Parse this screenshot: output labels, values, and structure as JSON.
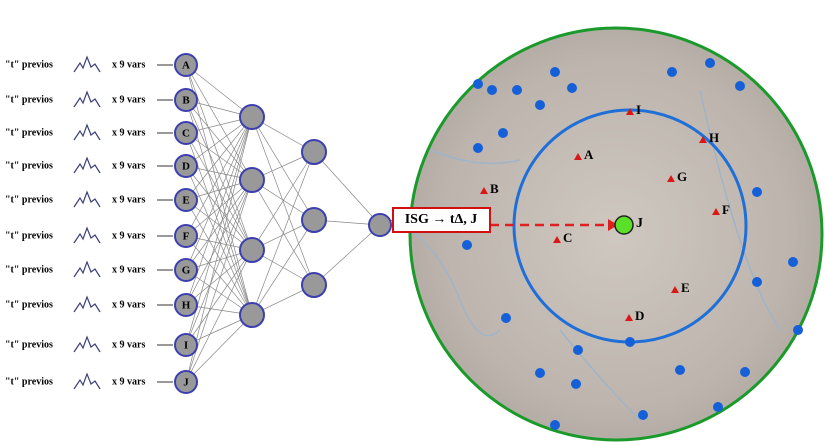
{
  "inputs": [
    {
      "prefix": "\"t\" previos",
      "multiplier": "x 9 vars",
      "node": "A"
    },
    {
      "prefix": "\"t\" previos",
      "multiplier": "x 9 vars",
      "node": "B"
    },
    {
      "prefix": "\"t\" previos",
      "multiplier": "x 9 vars",
      "node": "C"
    },
    {
      "prefix": "\"t\" previos",
      "multiplier": "x 9 vars",
      "node": "D"
    },
    {
      "prefix": "\"t\" previos",
      "multiplier": "x 9 vars",
      "node": "E"
    },
    {
      "prefix": "\"t\" previos",
      "multiplier": "x 9 vars",
      "node": "F"
    },
    {
      "prefix": "\"t\" previos",
      "multiplier": "x 9 vars",
      "node": "G"
    },
    {
      "prefix": "\"t\" previos",
      "multiplier": "x 9 vars",
      "node": "H"
    },
    {
      "prefix": "\"t\" previos",
      "multiplier": "x 9 vars",
      "node": "I"
    },
    {
      "prefix": "\"t\" previos",
      "multiplier": "x 9 vars",
      "node": "J"
    }
  ],
  "output_label": "ISG → tΔ, J",
  "map": {
    "stations": [
      "I",
      "H",
      "A",
      "G",
      "B",
      "F",
      "C",
      "E",
      "D"
    ],
    "target": "J"
  }
}
